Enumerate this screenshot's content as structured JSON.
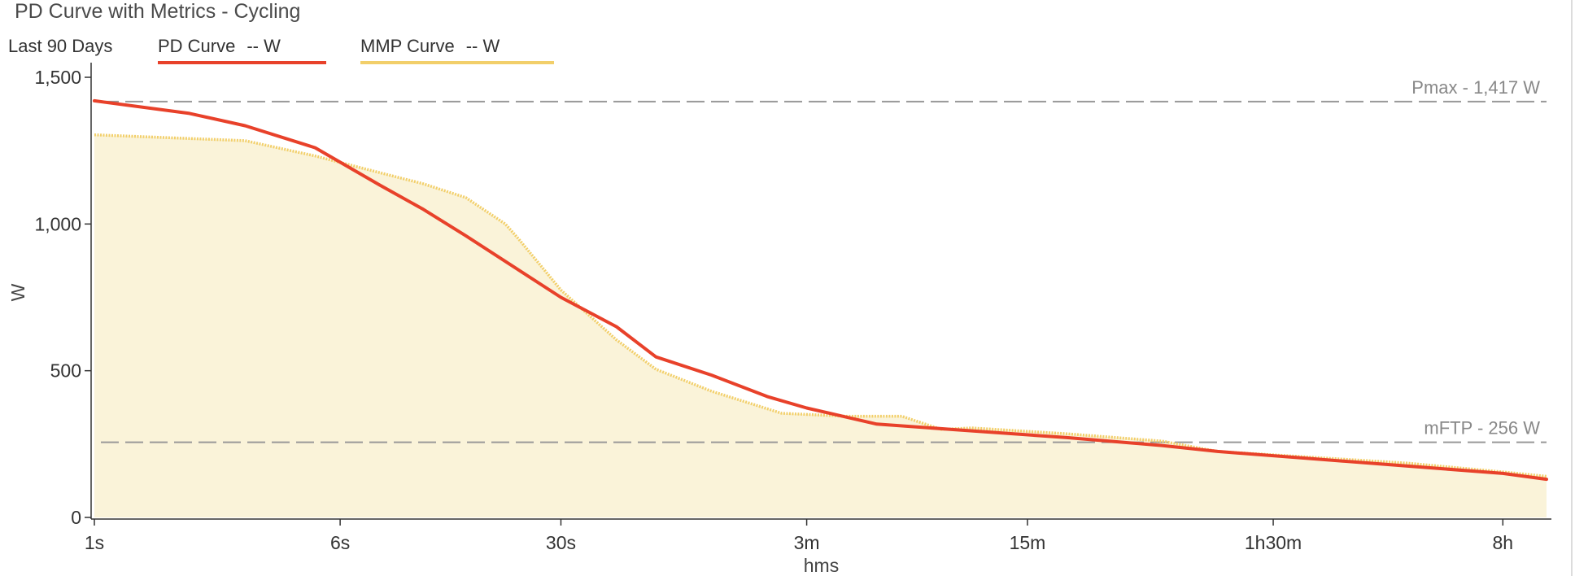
{
  "panel": {
    "title": "PD Curve with Metrics - Cycling"
  },
  "legend": {
    "range": "Last 90 Days",
    "pd_name": "PD Curve",
    "pd_value": "-- W",
    "mmp_name": "MMP Curve",
    "mmp_value": "-- W"
  },
  "colors": {
    "pd_line": "#e8412a",
    "mmp_line": "#f2cf6a",
    "mmp_fill": "#faf3d9",
    "ref_line": "#999999"
  },
  "chart_data": {
    "type": "area",
    "xlabel": "hms",
    "ylabel": "W",
    "x_scale": "log",
    "x_unit": "seconds",
    "xlim": [
      1,
      39600
    ],
    "ylim": [
      0,
      1500
    ],
    "y_ticks": [
      0,
      500,
      1000,
      1500
    ],
    "y_tick_labels": [
      "0",
      "500",
      "1,000",
      "1,500"
    ],
    "x_ticks": [
      1,
      6,
      30,
      180,
      900,
      5400,
      28800
    ],
    "x_tick_labels": [
      "1s",
      "6s",
      "30s",
      "3m",
      "15m",
      "1h30m",
      "8h"
    ],
    "grid": false,
    "reference_lines": [
      {
        "label": "Pmax - 1,417 W",
        "value": 1417
      },
      {
        "label": "mFTP - 256 W",
        "value": 256
      }
    ],
    "series": [
      {
        "name": "PD Curve",
        "points": [
          [
            1,
            1420
          ],
          [
            2,
            1377
          ],
          [
            3,
            1335
          ],
          [
            5,
            1260
          ],
          [
            8,
            1133
          ],
          [
            11,
            1050
          ],
          [
            15,
            960
          ],
          [
            30,
            750
          ],
          [
            45,
            650
          ],
          [
            60,
            547
          ],
          [
            90,
            485
          ],
          [
            135,
            412
          ],
          [
            180,
            373
          ],
          [
            300,
            318
          ],
          [
            600,
            295
          ],
          [
            1200,
            272
          ],
          [
            2400,
            245
          ],
          [
            3600,
            225
          ],
          [
            7200,
            200
          ],
          [
            14400,
            175
          ],
          [
            28800,
            150
          ],
          [
            39600,
            130
          ]
        ]
      },
      {
        "name": "MMP Curve",
        "points": [
          [
            1,
            1304
          ],
          [
            3,
            1284
          ],
          [
            5,
            1232
          ],
          [
            8,
            1175
          ],
          [
            11,
            1137
          ],
          [
            15,
            1090
          ],
          [
            20,
            1000
          ],
          [
            22,
            950
          ],
          [
            30,
            775
          ],
          [
            45,
            605
          ],
          [
            60,
            505
          ],
          [
            90,
            430
          ],
          [
            150,
            355
          ],
          [
            240,
            345
          ],
          [
            360,
            345
          ],
          [
            480,
            300
          ],
          [
            600,
            305
          ],
          [
            1200,
            285
          ],
          [
            2400,
            260
          ],
          [
            3600,
            225
          ],
          [
            7200,
            205
          ],
          [
            14400,
            185
          ],
          [
            28800,
            155
          ],
          [
            39600,
            140
          ]
        ]
      }
    ]
  }
}
